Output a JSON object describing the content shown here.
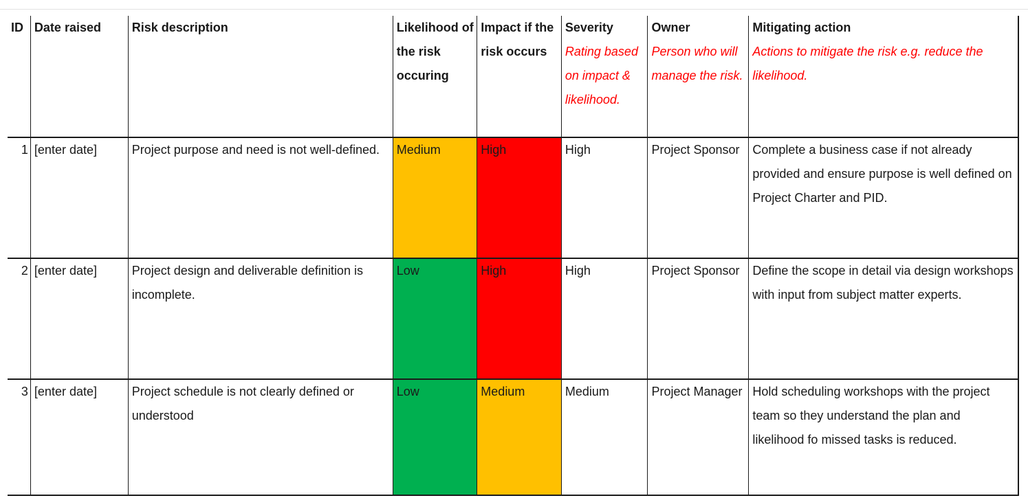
{
  "columns": [
    {
      "title": "ID",
      "note": ""
    },
    {
      "title": "Date raised",
      "note": ""
    },
    {
      "title": "Risk description",
      "note": ""
    },
    {
      "title": "Likelihood of the risk occuring",
      "note": ""
    },
    {
      "title": "Impact if the risk occurs",
      "note": ""
    },
    {
      "title": "Severity",
      "note": "Rating based on impact & likelihood."
    },
    {
      "title": "Owner",
      "note": "Person who will manage the risk."
    },
    {
      "title": "Mitigating action",
      "note": "Actions to mitigate the risk e.g. reduce the likelihood."
    }
  ],
  "rows": [
    {
      "id": "1",
      "date": "[enter date]",
      "description": "Project purpose and need is not well-defined.",
      "likelihood": "Medium",
      "impact": "High",
      "severity": "High",
      "owner": "Project Sponsor",
      "mitigation": "Complete a business case if not already provided and ensure purpose is well defined on Project Charter and PID."
    },
    {
      "id": "2",
      "date": "[enter date]",
      "description": "Project design and deliverable definition is incomplete.",
      "likelihood": "Low",
      "impact": "High",
      "severity": "High",
      "owner": "Project Sponsor",
      "mitigation": "Define the scope in detail via design workshops with input from subject matter experts."
    },
    {
      "id": "3",
      "date": "[enter date]",
      "description": "Project schedule is not clearly defined or understood",
      "likelihood": "Low",
      "impact": "Medium",
      "severity": "Medium",
      "owner": "Project Manager",
      "mitigation": "Hold scheduling workshops with the project team so they understand the plan and likelihood fo missed tasks is reduced."
    }
  ],
  "level_colors": {
    "Low": "#00b050",
    "Medium": "#ffc000",
    "High": "#ff0000"
  },
  "note_color": "#ff0000"
}
